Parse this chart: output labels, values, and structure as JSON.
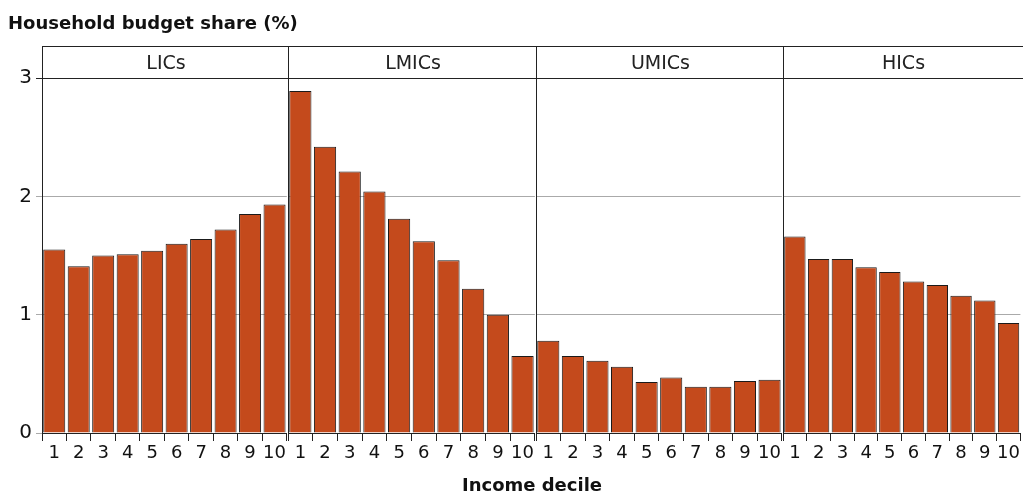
{
  "chart_data": [
    {
      "type": "bar",
      "title": "LICs",
      "ylabel": "Household budget share (%)",
      "categories": [
        "1",
        "2",
        "3",
        "4",
        "5",
        "6",
        "7",
        "8",
        "9",
        "10"
      ],
      "values": [
        1.55,
        1.41,
        1.5,
        1.51,
        1.54,
        1.6,
        1.64,
        1.72,
        1.85,
        1.93
      ],
      "color": "#c44a1c",
      "ylim": [
        0,
        3
      ],
      "yticks": [
        0,
        1,
        2,
        3
      ],
      "grid": "y"
    },
    {
      "type": "bar",
      "title": "LMICs",
      "xlabel": "Income decile",
      "categories": [
        "1",
        "2",
        "3",
        "4",
        "5",
        "6",
        "7",
        "8",
        "9",
        "10"
      ],
      "values": [
        2.89,
        2.42,
        2.21,
        2.04,
        1.81,
        1.62,
        1.46,
        1.22,
        1.0,
        0.65
      ],
      "color": "#c44a1c",
      "ylim": [
        0,
        3
      ],
      "yticks": [
        0,
        1,
        2,
        3
      ],
      "grid": "y",
      "tick_labels": "x"
    },
    {
      "type": "bar",
      "title": "UMICs",
      "categories": [
        "1",
        "2",
        "3",
        "4",
        "5",
        "6",
        "7",
        "8",
        "9",
        "10"
      ],
      "values": [
        0.78,
        0.65,
        0.61,
        0.56,
        0.43,
        0.47,
        0.39,
        0.39,
        0.44,
        0.45
      ],
      "color": "#c44a1c",
      "ylim": [
        0,
        3
      ],
      "yticks": [
        0,
        1,
        2,
        3
      ],
      "grid": "y",
      "tick_labels": "x"
    },
    {
      "type": "bar",
      "title": "HICs",
      "categories": [
        "1",
        "2",
        "3",
        "4",
        "5",
        "6",
        "7",
        "8",
        "9",
        "10"
      ],
      "values": [
        1.66,
        1.47,
        1.47,
        1.4,
        1.36,
        1.28,
        1.25,
        1.16,
        1.12,
        0.93
      ],
      "color": "#c44a1c",
      "ylim": [
        0,
        3
      ],
      "yticks": [
        0,
        1,
        2,
        3
      ],
      "grid": "y",
      "tick_labels": "x"
    }
  ]
}
